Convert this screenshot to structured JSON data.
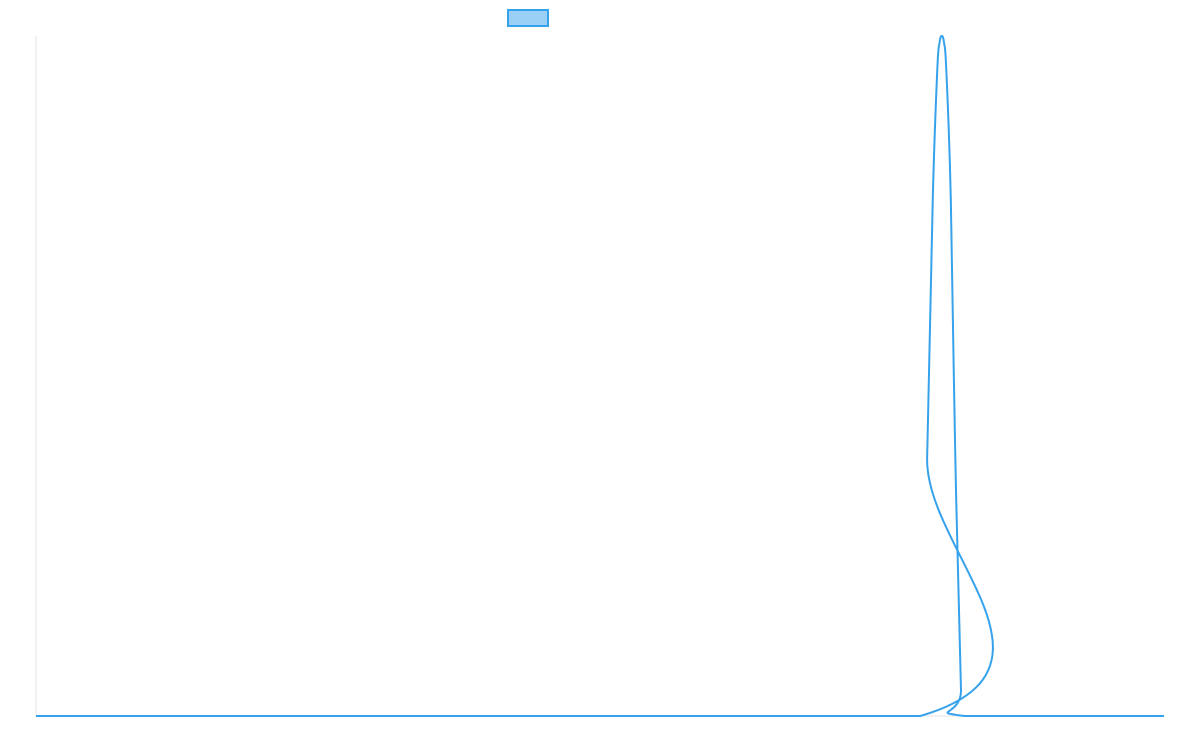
{
  "chart_data": {
    "type": "line",
    "title": "",
    "xlabel": "",
    "ylabel": "",
    "x_range": [
      0,
      100
    ],
    "ylim": [
      0,
      1
    ],
    "grid": false,
    "legend": {
      "position": "top-center",
      "entries": [
        {
          "label": ""
        }
      ]
    },
    "series": [
      {
        "color": "#36a2eb",
        "fill": "#9ad0f5",
        "x": [
          0,
          78.4,
          79.0,
          79.5,
          79.9,
          80.1,
          80.3,
          80.5,
          80.7,
          81.1,
          81.5,
          82.0,
          82.3,
          100
        ],
        "y": [
          0,
          0,
          0.38,
          0.76,
          0.95,
          0.99,
          1.0,
          0.99,
          0.95,
          0.76,
          0.38,
          0.04,
          0,
          0
        ]
      }
    ],
    "colors": {
      "line": "#36a2eb",
      "legend_fill": "#9ad0f5",
      "axis": "#e6e6e6"
    }
  }
}
